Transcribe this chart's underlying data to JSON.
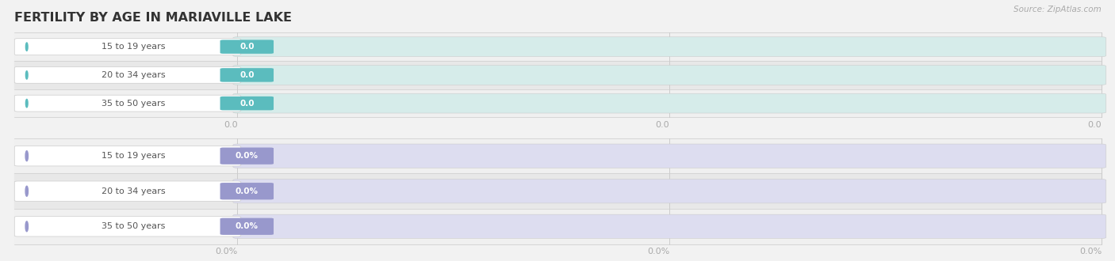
{
  "title": "FERTILITY BY AGE IN MARIAVILLE LAKE",
  "source": "Source: ZipAtlas.com",
  "top_group": {
    "labels": [
      "15 to 19 years",
      "20 to 34 years",
      "35 to 50 years"
    ],
    "values": [
      0.0,
      0.0,
      0.0
    ],
    "bar_bg_color": "#d6ecea",
    "bar_fill_color": "#5bbcbe",
    "value_labels": [
      "0.0",
      "0.0",
      "0.0"
    ],
    "y_tick_label": "0.0",
    "row_bg_even": "#f0f0f0",
    "row_bg_odd": "#e8e8e8"
  },
  "bottom_group": {
    "labels": [
      "15 to 19 years",
      "20 to 34 years",
      "35 to 50 years"
    ],
    "values": [
      0.0,
      0.0,
      0.0
    ],
    "bar_bg_color": "#ddddf0",
    "bar_fill_color": "#9898cc",
    "value_labels": [
      "0.0%",
      "0.0%",
      "0.0%"
    ],
    "y_tick_label": "0.0%",
    "row_bg_even": "#f0f0f0",
    "row_bg_odd": "#e8e8e8"
  },
  "fig_bg": "#f2f2f2",
  "label_color": "#555555",
  "tick_color": "#aaaaaa",
  "title_color": "#333333",
  "source_color": "#aaaaaa",
  "figsize": [
    14.06,
    3.3
  ],
  "dpi": 100,
  "label_pill_color": "#ffffff",
  "label_pill_edge": "#cccccc",
  "grid_color": "#cccccc"
}
